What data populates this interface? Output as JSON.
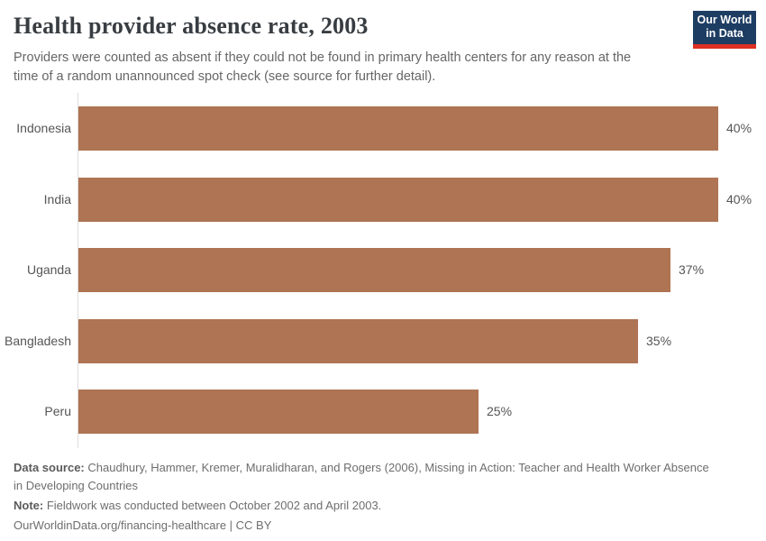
{
  "header": {
    "title": "Health provider absence rate, 2003",
    "subtitle_lines": [
      "Providers were counted as absent if they could not be found in primary health centers for any reason at the",
      "time of a random unannounced spot check (see source for further detail)."
    ],
    "logo": {
      "line1": "Our World",
      "line2": "in Data"
    }
  },
  "chart_data": {
    "type": "bar",
    "orientation": "horizontal",
    "title": "Health provider absence rate, 2003",
    "categories": [
      "Indonesia",
      "India",
      "Uganda",
      "Bangladesh",
      "Peru"
    ],
    "values": [
      40,
      40,
      37,
      35,
      25
    ],
    "value_labels": [
      "40%",
      "40%",
      "37%",
      "35%",
      "25%"
    ],
    "unit": "%",
    "xlim": [
      0,
      40
    ],
    "grid": false,
    "legend": false,
    "bar_color": "#AE7453"
  },
  "footer": {
    "source_label": "Data source:",
    "source_text": "Chaudhury, Hammer, Kremer, Muralidharan, and Rogers (2006), Missing in Action: Teacher and Health Worker Absence in Developing Countries",
    "note_label": "Note:",
    "note_text": "Fieldwork was conducted between October 2002 and April 2003.",
    "link_text": "OurWorldinData.org/financing-healthcare | CC BY"
  },
  "colors": {
    "bar": "#AE7453",
    "title": "#383d42",
    "subtitle": "#666666",
    "labels": "#555555",
    "footer_text": "#6e6e6e",
    "logo_navy": "#1d3d63",
    "logo_red": "#dc3022",
    "axis": "#dddddd"
  }
}
